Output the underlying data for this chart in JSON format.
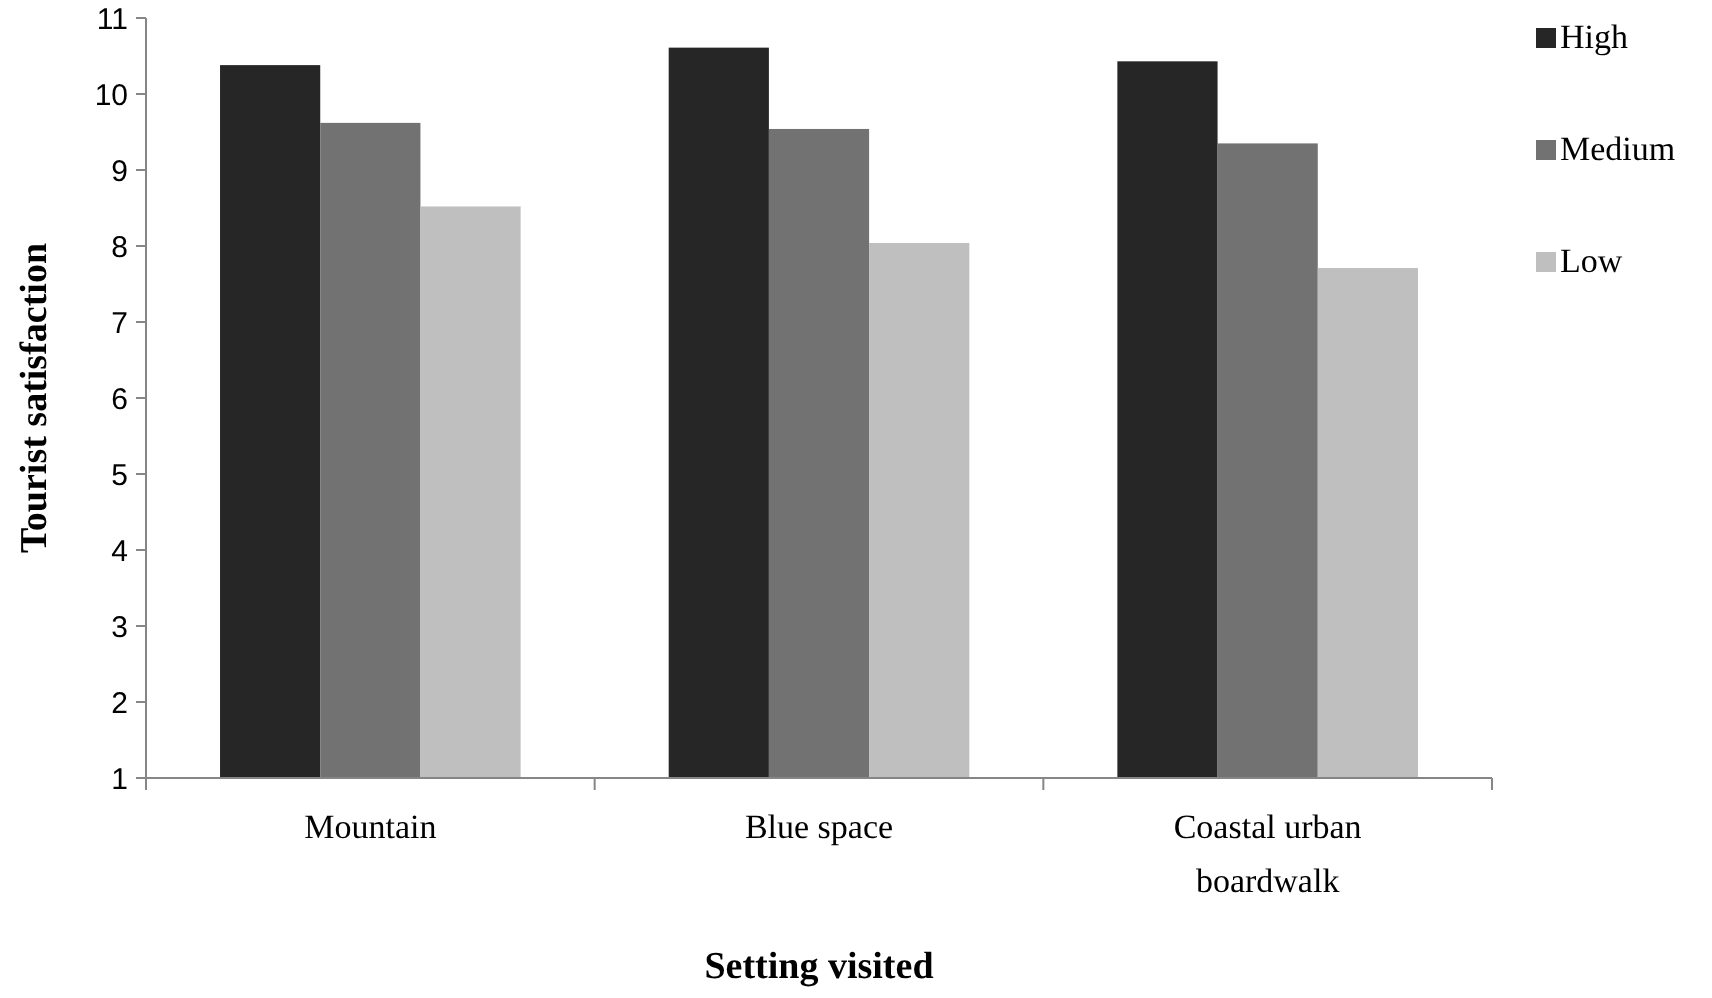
{
  "chart_data": {
    "type": "bar",
    "xlabel": "Setting visited",
    "ylabel": "Tourist satisfaction",
    "categories": [
      "Mountain",
      "Blue space",
      "Coastal urban boardwalk"
    ],
    "series": [
      {
        "name": "High",
        "color": "#262626",
        "values": [
          10.38,
          10.61,
          10.43
        ]
      },
      {
        "name": "Medium",
        "color": "#727272",
        "values": [
          9.62,
          9.54,
          9.35
        ]
      },
      {
        "name": "Low",
        "color": "#bfbfbf",
        "values": [
          8.52,
          8.04,
          7.71
        ]
      }
    ],
    "ylim": [
      1,
      11
    ],
    "yticks": [
      1,
      2,
      3,
      4,
      5,
      6,
      7,
      8,
      9,
      10,
      11
    ],
    "grid": false,
    "legend": "top right"
  }
}
